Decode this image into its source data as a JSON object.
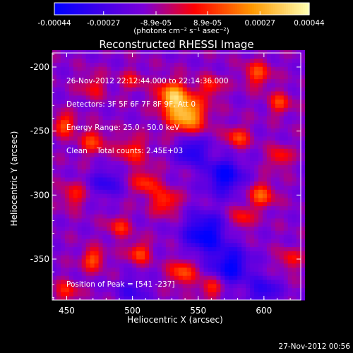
{
  "colorbar": {
    "tick_labels": [
      "-0.00044",
      "-0.00027",
      "-8.9e-05",
      "8.9e-05",
      "0.00027",
      "0.00044"
    ],
    "tick_values": [
      -0.00044,
      -0.00027,
      -8.9e-05,
      8.9e-05,
      0.00027,
      0.00044
    ],
    "unit_label": "(photons cm⁻² s⁻¹ asec⁻²)",
    "range": [
      -0.00044,
      0.00044
    ],
    "colors": [
      "#0000ff",
      "#7c00d8",
      "#ff0000",
      "#ff9900",
      "#ffffb0"
    ]
  },
  "chart_data": {
    "type": "heatmap",
    "title": "Reconstructed RHESSI Image",
    "xlabel": "Heliocentric X (arcsec)",
    "ylabel": "Heliocentric Y (arcsec)",
    "xlim": [
      439,
      628
    ],
    "ylim": [
      -382,
      -189
    ],
    "xticks": [
      450,
      500,
      550,
      600
    ],
    "yticks": [
      -200,
      -250,
      -300,
      -350
    ],
    "x_tick_labels": [
      "450",
      "500",
      "550",
      "600"
    ],
    "y_tick_labels": [
      "-200",
      "-250",
      "-300",
      "-350"
    ],
    "peak": {
      "x": 541,
      "y": -237
    },
    "blobs": [
      {
        "x": 541,
        "y": -237,
        "amp": 1.0,
        "sig": 10
      },
      {
        "x": 530,
        "y": -222,
        "amp": 0.85,
        "sig": 8
      },
      {
        "x": 448,
        "y": -245,
        "amp": 0.6,
        "sig": 6
      },
      {
        "x": 470,
        "y": -258,
        "amp": 0.5,
        "sig": 7
      },
      {
        "x": 500,
        "y": -265,
        "amp": 0.45,
        "sig": 8
      },
      {
        "x": 595,
        "y": -205,
        "amp": 0.55,
        "sig": 7
      },
      {
        "x": 612,
        "y": -228,
        "amp": 0.5,
        "sig": 6
      },
      {
        "x": 580,
        "y": -255,
        "amp": 0.55,
        "sig": 6
      },
      {
        "x": 598,
        "y": -300,
        "amp": 0.6,
        "sig": 7
      },
      {
        "x": 583,
        "y": -318,
        "amp": 0.45,
        "sig": 6
      },
      {
        "x": 455,
        "y": -300,
        "amp": 0.4,
        "sig": 7
      },
      {
        "x": 510,
        "y": -290,
        "amp": 0.5,
        "sig": 7
      },
      {
        "x": 525,
        "y": -305,
        "amp": 0.55,
        "sig": 7
      },
      {
        "x": 490,
        "y": -325,
        "amp": 0.45,
        "sig": 6
      },
      {
        "x": 470,
        "y": -350,
        "amp": 0.6,
        "sig": 6
      },
      {
        "x": 505,
        "y": -345,
        "amp": 0.55,
        "sig": 6
      },
      {
        "x": 538,
        "y": -360,
        "amp": 0.6,
        "sig": 7
      },
      {
        "x": 560,
        "y": -372,
        "amp": 0.5,
        "sig": 6
      },
      {
        "x": 612,
        "y": -270,
        "amp": 0.45,
        "sig": 6
      },
      {
        "x": 450,
        "y": -375,
        "amp": 0.45,
        "sig": 6
      },
      {
        "x": 620,
        "y": -350,
        "amp": 0.4,
        "sig": 6
      },
      {
        "x": 470,
        "y": -215,
        "amp": 0.35,
        "sig": 7
      },
      {
        "x": 560,
        "y": -215,
        "amp": 0.45,
        "sig": 6
      },
      {
        "x": 500,
        "y": -210,
        "amp": 0.35,
        "sig": 6
      },
      {
        "x": 570,
        "y": -285,
        "amp": -0.7,
        "sig": 10
      },
      {
        "x": 555,
        "y": -330,
        "amp": -0.75,
        "sig": 11
      },
      {
        "x": 575,
        "y": -355,
        "amp": -0.7,
        "sig": 10
      },
      {
        "x": 545,
        "y": -265,
        "amp": -0.6,
        "sig": 8
      },
      {
        "x": 480,
        "y": -290,
        "amp": -0.45,
        "sig": 8
      },
      {
        "x": 500,
        "y": -375,
        "amp": -0.35,
        "sig": 8
      },
      {
        "x": 600,
        "y": -375,
        "amp": -0.5,
        "sig": 8
      }
    ]
  },
  "info_lines": [
    "26-Nov-2012 22:12:44.000 to 22:14:36.000",
    "Detectors: 3F 5F 6F 7F 8F 9F, Att 0",
    "Energy Range: 25.0 - 50.0 keV",
    "Clean    Total counts: 2.45E+03"
  ],
  "peak_label": "Position of Peak = [541 -237]",
  "footer_timestamp": "27-Nov-2012 00:56"
}
